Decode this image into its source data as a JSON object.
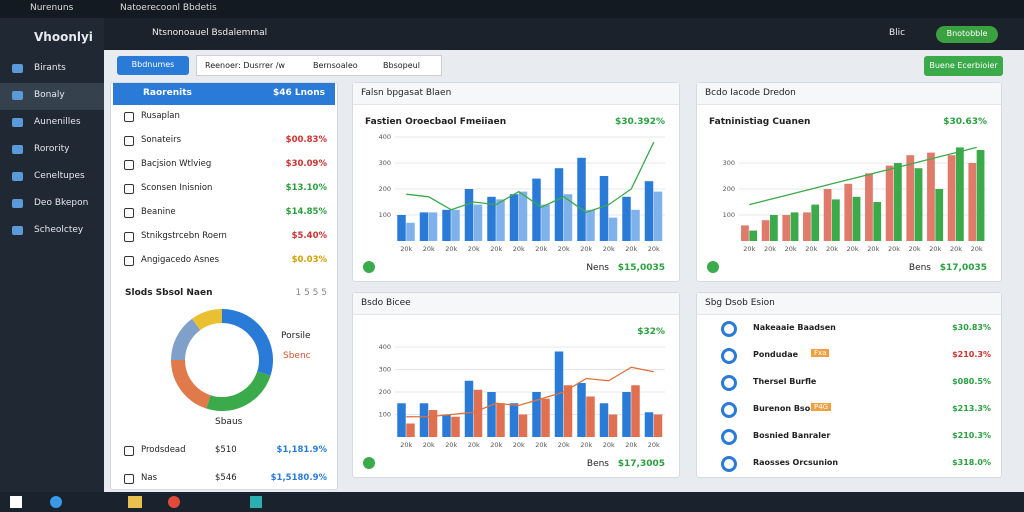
{
  "browser": {
    "tabs": [
      "Nurenuns",
      "Natoerecoonl Bbdetis"
    ]
  },
  "sidebar": {
    "brand": "Vhoonlyi",
    "items": [
      "Birants",
      "Bonaly",
      "Aunenilles",
      "Rorority",
      "Ceneltupes",
      "Deo Bkepon",
      "Scheolctey"
    ]
  },
  "header": {
    "title": "Ntsnonoauel Bsdalemmal",
    "status": "Blic",
    "button": "Bnotobble"
  },
  "toolbar": {
    "button": "Bbdnumes",
    "filters": [
      "Reenoer: Dusrrer /w",
      "Bernsoaleo",
      "Bbsopeul"
    ],
    "action": "Buene Ecerbioier"
  },
  "list": {
    "header": {
      "label": "Raorenits",
      "value": "$46 Lnons"
    },
    "rows": [
      {
        "label": "Rusaplan",
        "value": ""
      },
      {
        "label": "Sonateirs",
        "value": "$00.83%",
        "color": "#d03030"
      },
      {
        "label": "Bacjsion Wtlvieg",
        "value": "$30.09%",
        "color": "#d03030"
      },
      {
        "label": "Sconsen Inisnion",
        "value": "$13.10%",
        "color": "#2aa040"
      },
      {
        "label": "Beanine",
        "value": "$14.85%",
        "color": "#2aa040"
      },
      {
        "label": "Stnikgstrcebn Roern",
        "value": "$5.40%",
        "color": "#d03030"
      },
      {
        "label": "Angigacedo Asnes",
        "value": "$0.03%",
        "color": "#d0a000"
      }
    ],
    "donut_title": "Slods Sbsol Naen",
    "donut_meta": "1 5 5 5",
    "donut_legend": [
      "Porsile",
      "Sbenc"
    ],
    "donut_caption": "Sbaus",
    "footer": [
      {
        "label": "Prodsdead",
        "a": "$510",
        "b": "$1,181.9%"
      },
      {
        "label": "Nas",
        "a": "$546",
        "b": "$1,5180.9%"
      }
    ]
  },
  "chart_data": [
    {
      "type": "bar",
      "title": "Falsn bpgasat Blaen",
      "subtitle": "Fastien Oroecbaol Fmeiiaen",
      "value_text": "$30.392%",
      "footer_label": "Nens",
      "footer_value": "$15,0035",
      "categories": [
        "20k",
        "20k",
        "20k",
        "20k",
        "20k",
        "20k",
        "20k",
        "20k",
        "20k",
        "20k",
        "20k",
        "20k"
      ],
      "ylim": [
        0,
        400
      ],
      "yticks": [
        100,
        200,
        300,
        400
      ],
      "series": [
        {
          "name": "A",
          "type": "bar",
          "color": "#2a7bd8",
          "values": [
            100,
            110,
            120,
            200,
            170,
            180,
            240,
            280,
            320,
            250,
            170,
            230
          ]
        },
        {
          "name": "B",
          "type": "bar",
          "color": "#7fb2ea",
          "values": [
            70,
            110,
            120,
            140,
            160,
            190,
            140,
            180,
            120,
            90,
            120,
            190
          ]
        },
        {
          "name": "C",
          "type": "line",
          "color": "#3aaa4a",
          "values": [
            180,
            170,
            120,
            150,
            140,
            190,
            130,
            170,
            110,
            140,
            200,
            380
          ]
        }
      ]
    },
    {
      "type": "bar",
      "title": "Bcdo Iacode Dredon",
      "subtitle": "Fatninistiag Cuanen",
      "value_text": "$30.63%",
      "footer_label": "Bens",
      "footer_value": "$17,0035",
      "categories": [
        "20k",
        "20k",
        "20k",
        "20k",
        "20k",
        "20k",
        "20k",
        "20k",
        "20k",
        "20k",
        "20k",
        "20k"
      ],
      "ylim": [
        0,
        400
      ],
      "yticks": [
        100,
        200,
        300
      ],
      "series": [
        {
          "name": "A",
          "type": "bar",
          "color": "#e07a6a",
          "values": [
            60,
            80,
            100,
            110,
            200,
            220,
            260,
            290,
            330,
            340,
            330,
            300
          ]
        },
        {
          "name": "B",
          "type": "bar",
          "color": "#3aaa4a",
          "values": [
            40,
            100,
            110,
            140,
            160,
            170,
            150,
            300,
            280,
            200,
            360,
            350
          ]
        },
        {
          "name": "C",
          "type": "line",
          "color": "#3aaa4a",
          "values": [
            140,
            160,
            180,
            200,
            220,
            240,
            260,
            280,
            300,
            320,
            340,
            360
          ]
        }
      ]
    },
    {
      "type": "bar",
      "title": "Bsdo Bicee",
      "subtitle": "",
      "value_text": "$32%",
      "footer_label": "Bens",
      "footer_value": "$17,3005",
      "categories": [
        "20k",
        "20k",
        "20k",
        "20k",
        "20k",
        "20k",
        "20k",
        "20k",
        "20k",
        "20k",
        "20k",
        "20k"
      ],
      "ylim": [
        0,
        400
      ],
      "yticks": [
        100,
        200,
        300,
        400
      ],
      "series": [
        {
          "name": "A",
          "type": "bar",
          "color": "#2a7bd8",
          "values": [
            150,
            150,
            100,
            250,
            200,
            150,
            200,
            380,
            240,
            150,
            200,
            110
          ]
        },
        {
          "name": "B",
          "type": "bar",
          "color": "#e07050",
          "values": [
            60,
            120,
            90,
            210,
            150,
            100,
            170,
            230,
            180,
            100,
            230,
            100
          ]
        },
        {
          "name": "C",
          "type": "line",
          "color": "#e0703a",
          "values": [
            90,
            90,
            100,
            110,
            150,
            140,
            170,
            200,
            260,
            250,
            310,
            290
          ]
        }
      ]
    },
    {
      "type": "pie",
      "donut": true,
      "values": [
        30,
        25,
        20,
        15,
        10
      ],
      "colors": [
        "#2a7bd8",
        "#3aaa4a",
        "#e07a4a",
        "#7fa0c8",
        "#e8c030"
      ]
    }
  ],
  "ranking": {
    "title": "Sbg Dsob Esion",
    "rows": [
      {
        "name": "Nakeaaie Baadsen",
        "tag": "",
        "value": "$30.83%",
        "color": "#2aa040"
      },
      {
        "name": "Pondudae",
        "tag": "Fxa",
        "value": "$210.3%",
        "color": "#d03030"
      },
      {
        "name": "Thersel Burfle",
        "tag": "",
        "value": "$080.5%",
        "color": "#2aa040"
      },
      {
        "name": "Burenon Bsoniee",
        "tag": "P4G",
        "value": "$213.3%",
        "color": "#2aa040"
      },
      {
        "name": "Bosnied Banraler",
        "tag": "",
        "value": "$210.3%",
        "color": "#2aa040"
      },
      {
        "name": "Raosses Orcsunion",
        "tag": "",
        "value": "$318.0%",
        "color": "#2aa040"
      }
    ]
  }
}
